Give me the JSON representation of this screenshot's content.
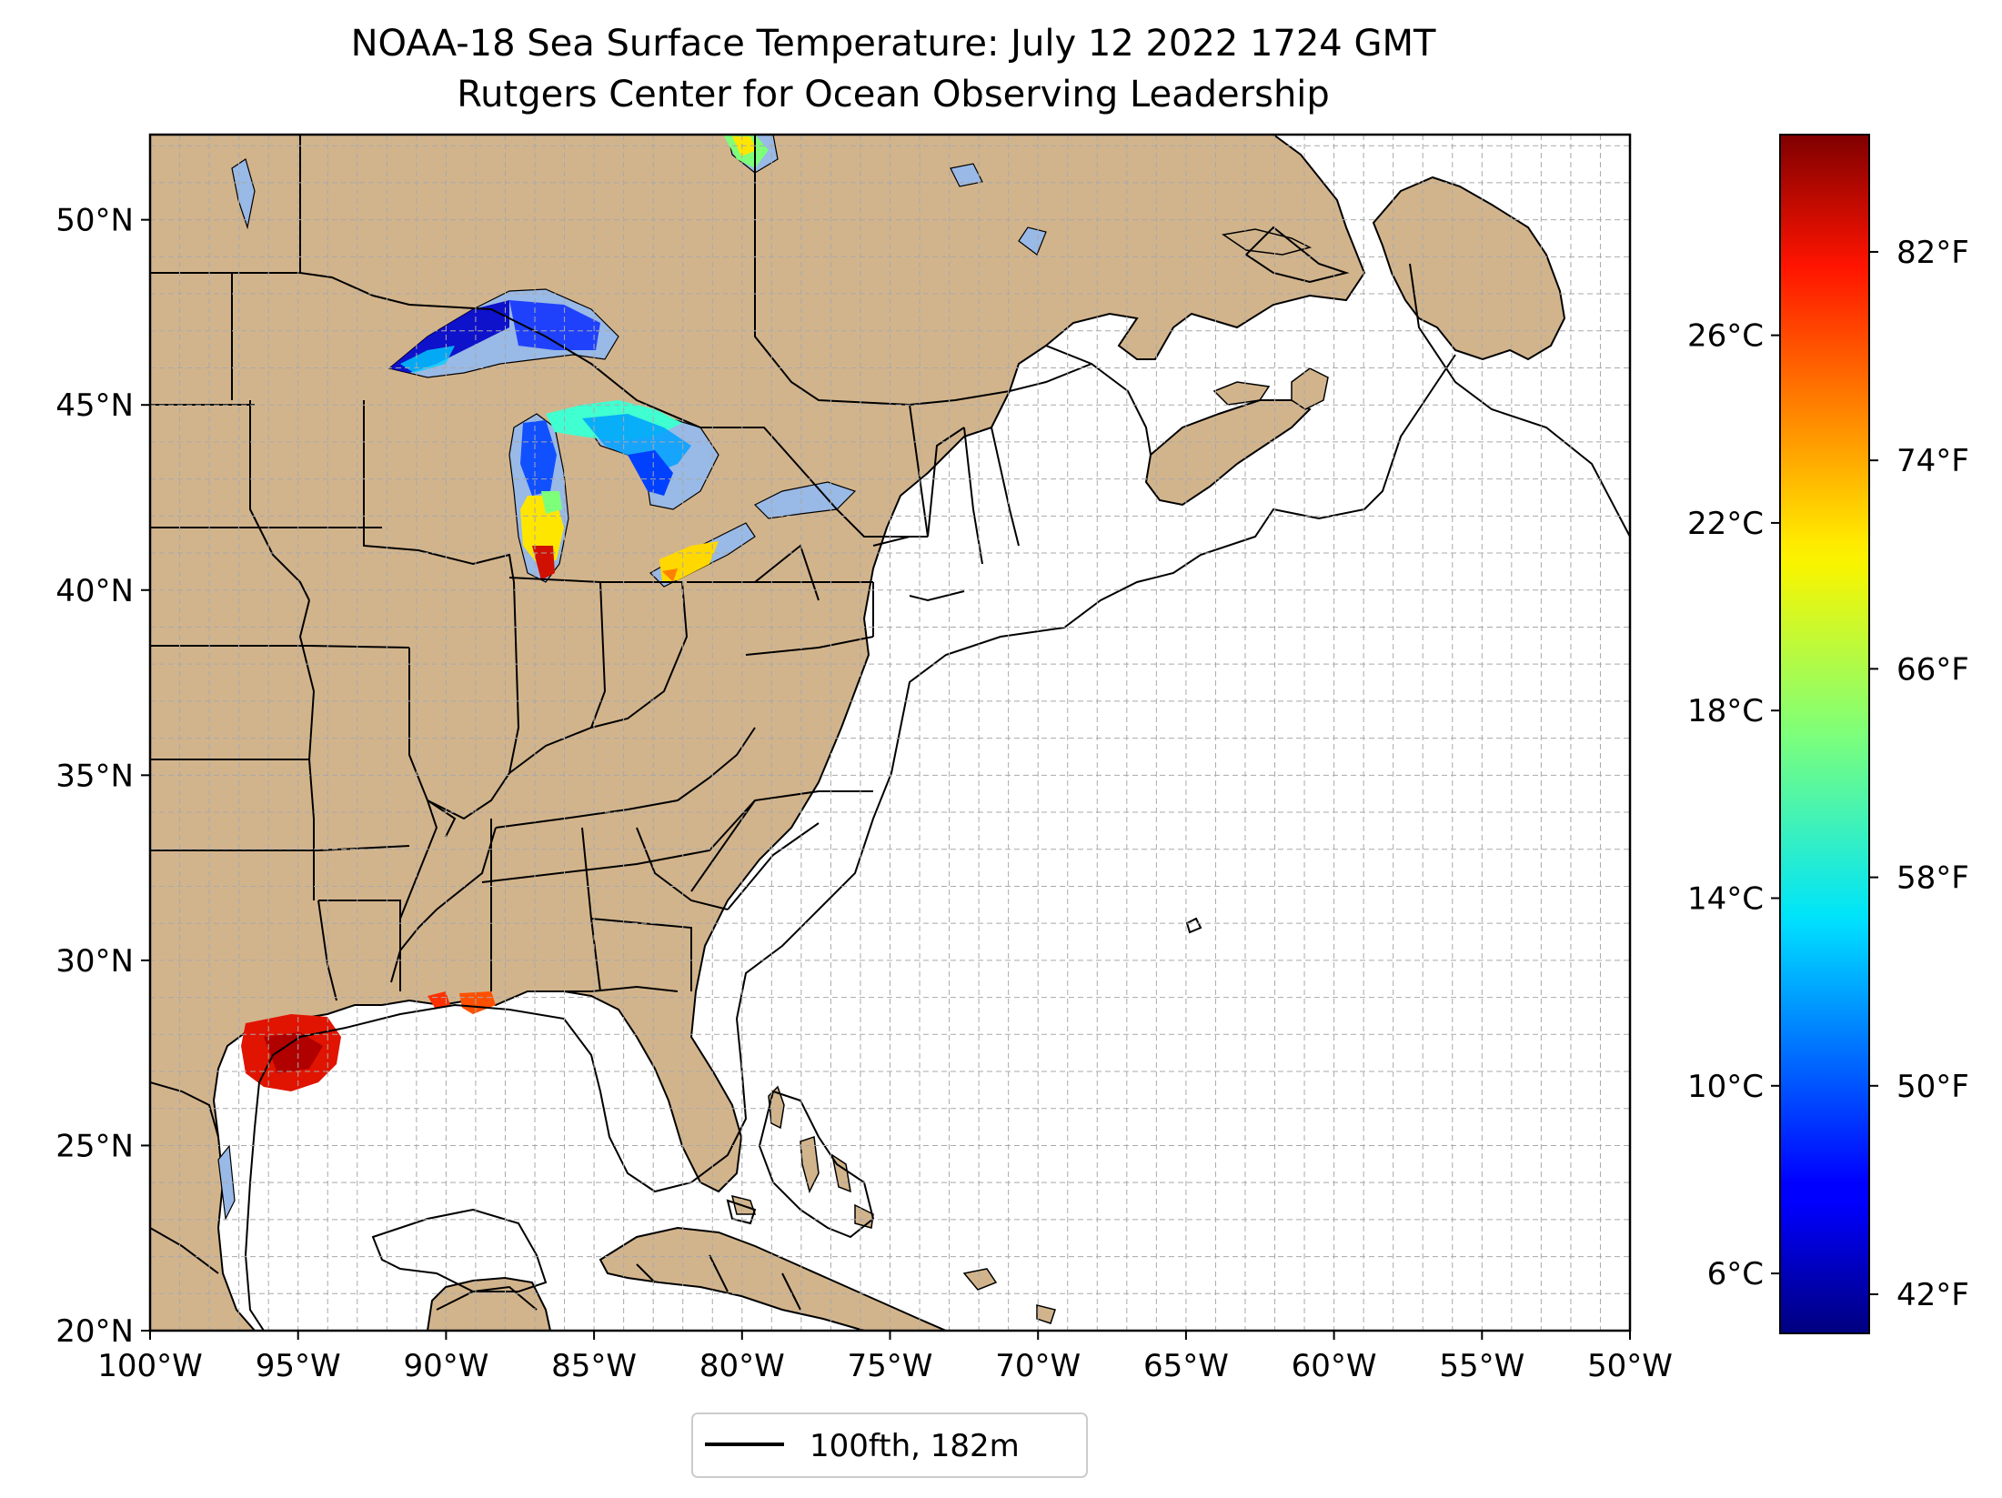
{
  "title": "NOAA-18 Sea Surface Temperature: July 12 2022 1724 GMT",
  "subtitle": "Rutgers Center for Ocean Observing Leadership",
  "map": {
    "extent": {
      "lon_min": -100,
      "lon_max": -50,
      "lat_min": 20,
      "lat_max": 52.3
    },
    "grid": true,
    "land_color": "#d2b48c",
    "ocean_color": "#ffffff",
    "lake_color": "#99b9e6",
    "lat_ticks": [
      20,
      25,
      30,
      35,
      40,
      45,
      50
    ],
    "lat_labels": [
      "20°N",
      "25°N",
      "30°N",
      "35°N",
      "40°N",
      "45°N",
      "50°N"
    ],
    "lon_ticks": [
      -100,
      -95,
      -90,
      -85,
      -80,
      -75,
      -70,
      -65,
      -60,
      -55,
      -50
    ],
    "lon_labels": [
      "100°W",
      "95°W",
      "90°W",
      "85°W",
      "80°W",
      "75°W",
      "70°W",
      "65°W",
      "60°W",
      "55°W",
      "50°W"
    ]
  },
  "legend": {
    "label": "100fth, 182m",
    "placement": "bottom-center",
    "line_color": "#000000"
  },
  "colorbar": {
    "colormap": "jet",
    "min_f": 40.5,
    "max_f": 86.5,
    "celsius_ticks": [
      6,
      10,
      14,
      18,
      22,
      26
    ],
    "celsius_labels": [
      "6°C",
      "10°C",
      "14°C",
      "18°C",
      "22°C",
      "26°C"
    ],
    "fahrenheit_ticks": [
      42,
      50,
      58,
      66,
      74,
      82
    ],
    "fahrenheit_labels": [
      "42°F",
      "50°F",
      "58°F",
      "66°F",
      "74°F",
      "82°F"
    ]
  }
}
